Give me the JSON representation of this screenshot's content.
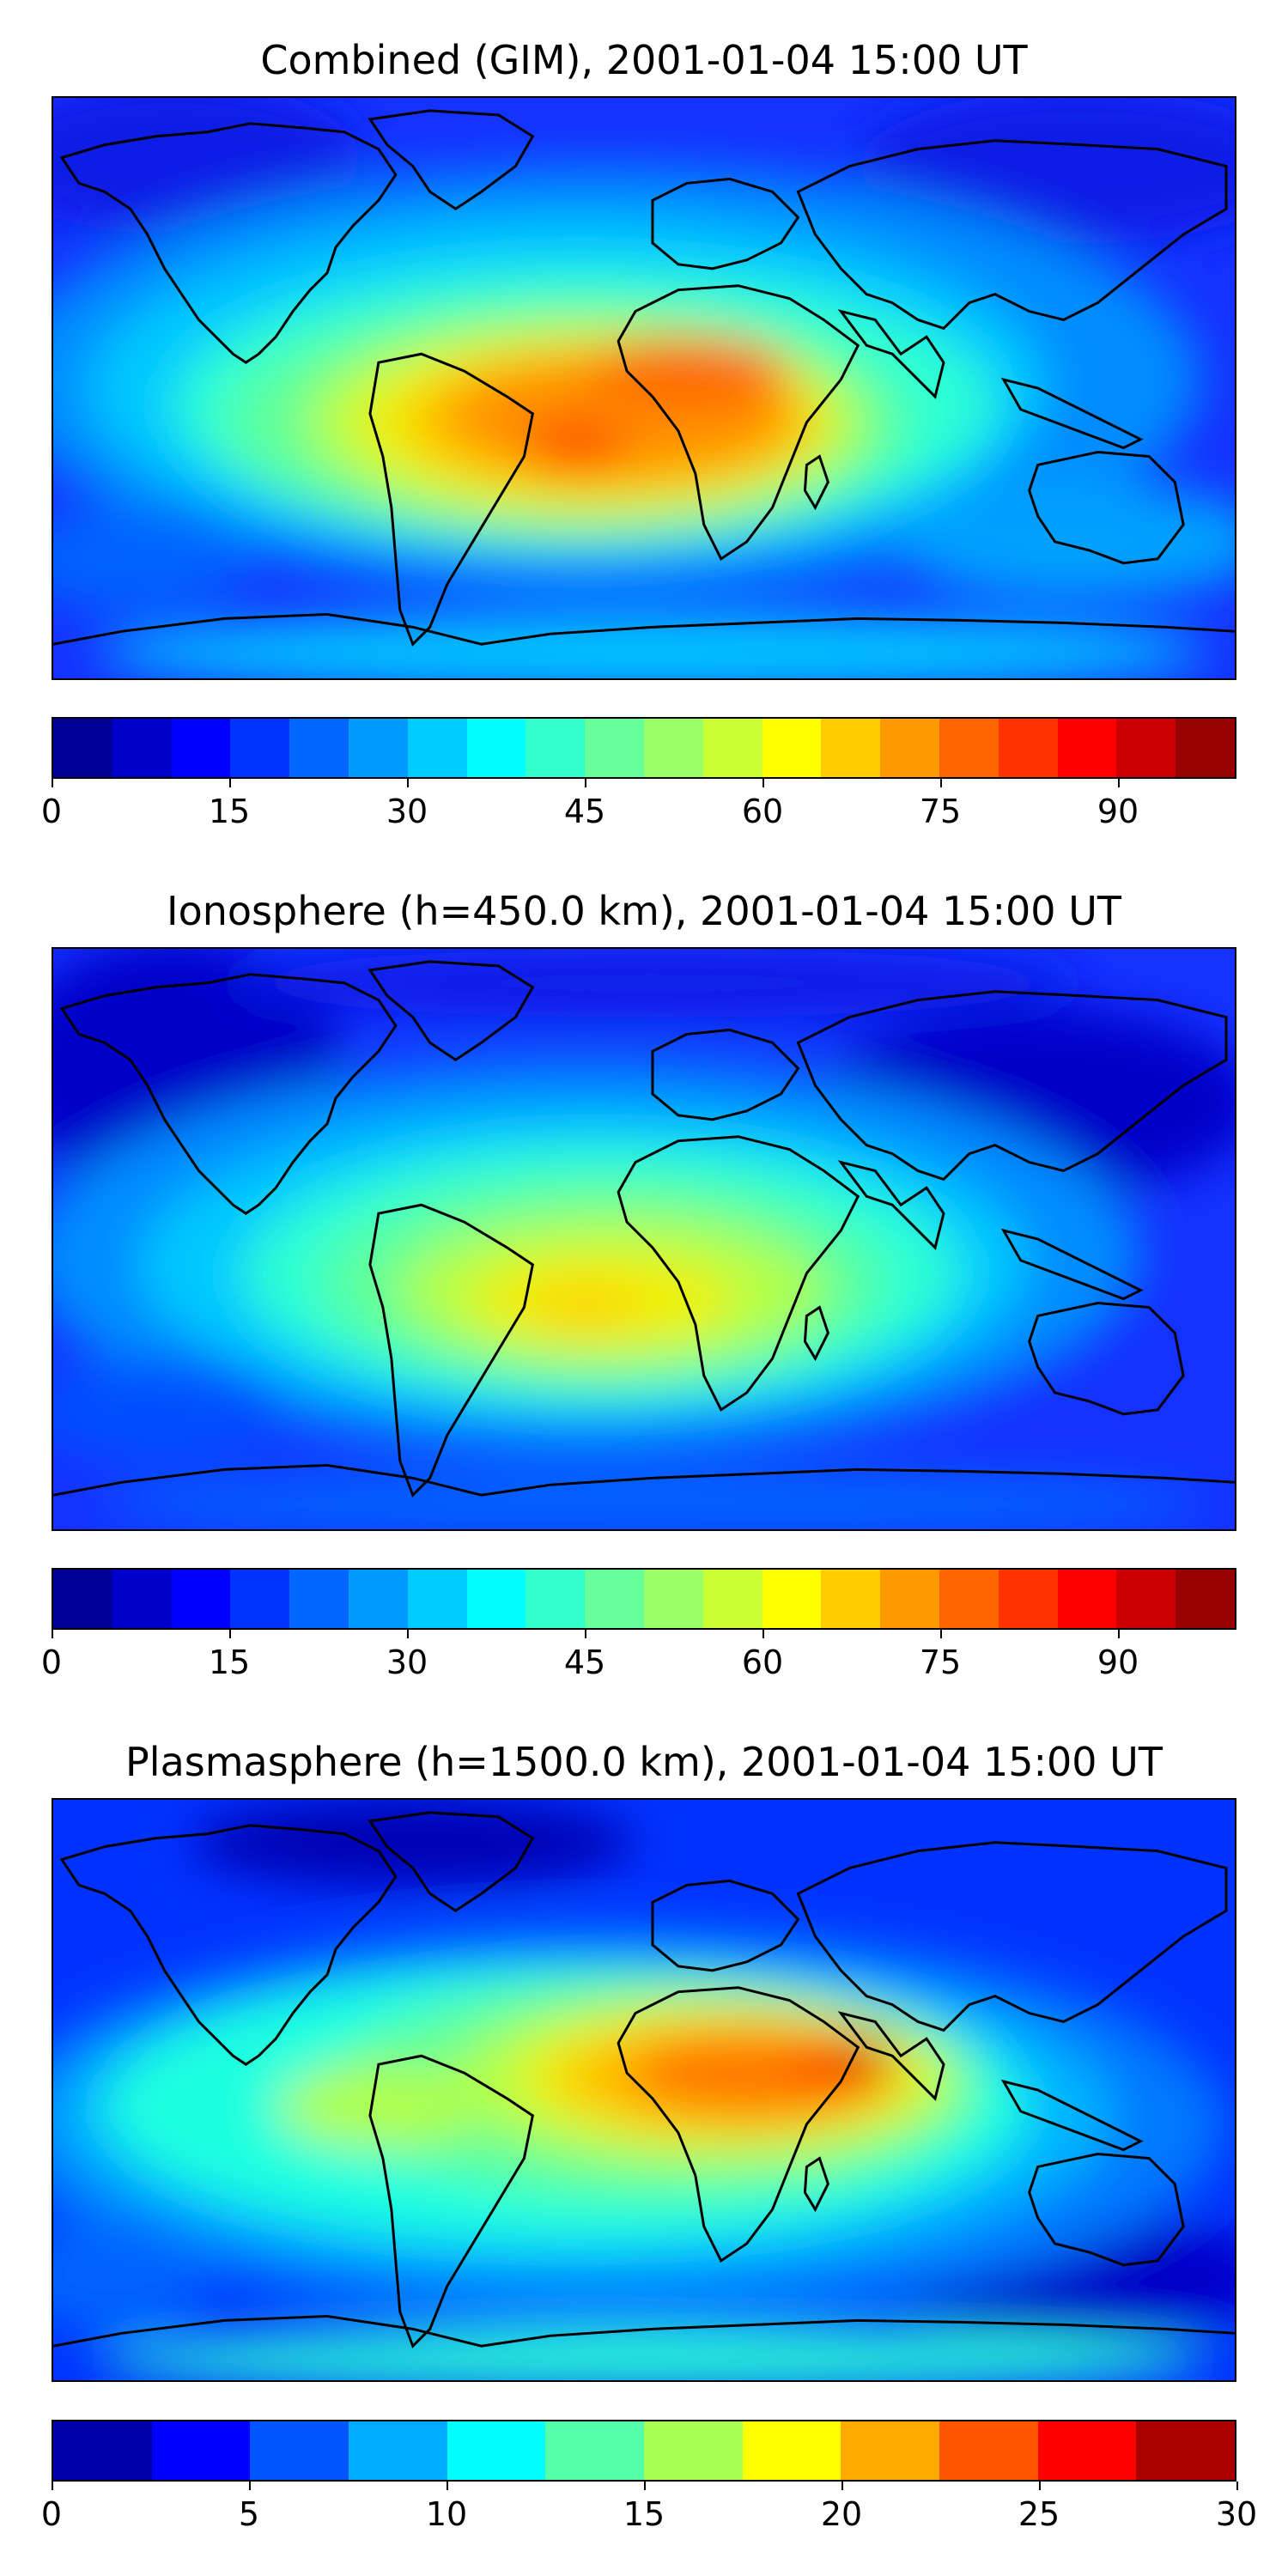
{
  "panels": [
    {
      "title": "Combined (GIM), 2001-01-04 15:00 UT",
      "colorbar": {
        "min": 0,
        "max": 100,
        "step": 5,
        "tick_labels": [
          "0",
          "15",
          "30",
          "45",
          "60",
          "75",
          "90"
        ],
        "tick_values": [
          0,
          15,
          30,
          45,
          60,
          75,
          90
        ]
      }
    },
    {
      "title": "Ionosphere  (h=450.0 km), 2001-01-04 15:00 UT",
      "colorbar": {
        "min": 0,
        "max": 100,
        "step": 5,
        "tick_labels": [
          "0",
          "15",
          "30",
          "45",
          "60",
          "75",
          "90"
        ],
        "tick_values": [
          0,
          15,
          30,
          45,
          60,
          75,
          90
        ]
      }
    },
    {
      "title": "Plasmasphere (h=1500.0 km), 2001-01-04 15:00 UT",
      "colorbar": {
        "min": 0,
        "max": 30,
        "step": 2.5,
        "tick_labels": [
          "0",
          "5",
          "10",
          "15",
          "20",
          "25",
          "30"
        ],
        "tick_values": [
          0,
          5,
          10,
          15,
          20,
          25,
          30
        ]
      }
    }
  ],
  "colormap": "jet",
  "coastline_color": "#000000"
}
